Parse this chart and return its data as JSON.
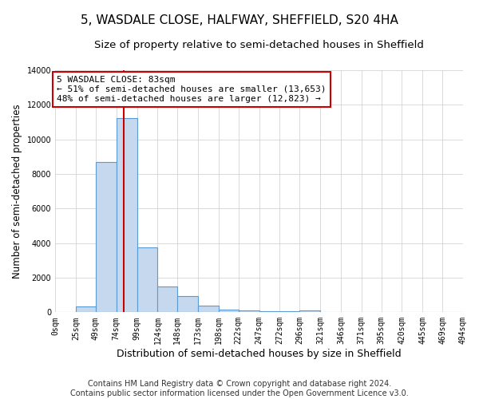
{
  "title": "5, WASDALE CLOSE, HALFWAY, SHEFFIELD, S20 4HA",
  "subtitle": "Size of property relative to semi-detached houses in Sheffield",
  "xlabel": "Distribution of semi-detached houses by size in Sheffield",
  "ylabel": "Number of semi-detached properties",
  "property_size": 83,
  "bin_edges": [
    0,
    25,
    49,
    74,
    99,
    124,
    148,
    173,
    198,
    222,
    247,
    272,
    296,
    321,
    346,
    371,
    395,
    420,
    445,
    469,
    494
  ],
  "bar_heights": [
    0,
    350,
    8700,
    11200,
    3750,
    1500,
    950,
    400,
    175,
    125,
    75,
    75,
    100,
    0,
    0,
    0,
    0,
    0,
    0,
    0
  ],
  "bar_color": "#c5d8ed",
  "bar_edge_color": "#5b9bd5",
  "line_color": "#cc0000",
  "annotation_text": "5 WASDALE CLOSE: 83sqm\n← 51% of semi-detached houses are smaller (13,653)\n48% of semi-detached houses are larger (12,823) →",
  "annotation_box_color": "white",
  "annotation_box_edge": "#cc0000",
  "footer": "Contains HM Land Registry data © Crown copyright and database right 2024.\nContains public sector information licensed under the Open Government Licence v3.0.",
  "ylim": [
    0,
    14000
  ],
  "xtick_labels": [
    "0sqm",
    "25sqm",
    "49sqm",
    "74sqm",
    "99sqm",
    "124sqm",
    "148sqm",
    "173sqm",
    "198sqm",
    "222sqm",
    "247sqm",
    "272sqm",
    "296sqm",
    "321sqm",
    "346sqm",
    "371sqm",
    "395sqm",
    "420sqm",
    "445sqm",
    "469sqm",
    "494sqm"
  ],
  "title_fontsize": 11,
  "subtitle_fontsize": 9.5,
  "ylabel_fontsize": 8.5,
  "xlabel_fontsize": 9,
  "tick_fontsize": 7,
  "annotation_fontsize": 8,
  "footer_fontsize": 7
}
